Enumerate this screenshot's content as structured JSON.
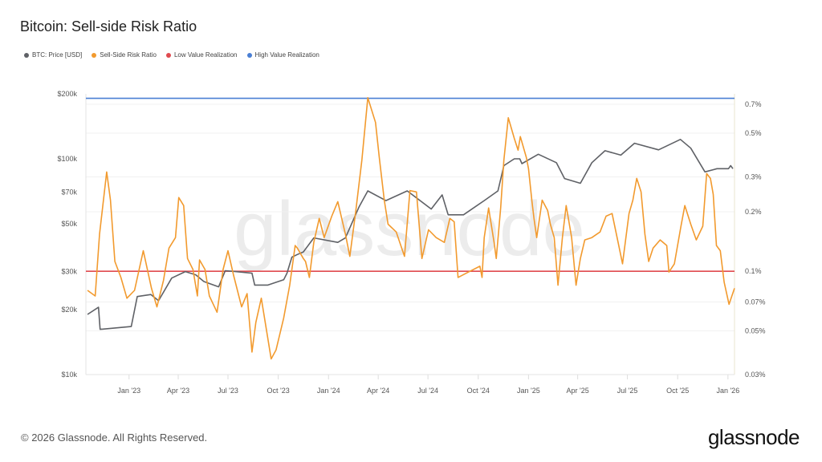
{
  "title": "Bitcoin: Sell-side Risk Ratio",
  "legend": [
    {
      "label": "BTC: Price [USD]",
      "color": "#5f6166"
    },
    {
      "label": "Sell-Side Risk Ratio",
      "color": "#f29a2e"
    },
    {
      "label": "Low Value Realization",
      "color": "#e04a4f"
    },
    {
      "label": "High Value Realization",
      "color": "#4a7fd4"
    }
  ],
  "watermark": "glassnode",
  "footer": {
    "copyright": "© 2026 Glassnode. All Rights Reserved.",
    "logo": "glassnode"
  },
  "chart_data": {
    "type": "line",
    "title": "Bitcoin: Sell-side Risk Ratio",
    "x_range": [
      "2022-10-14",
      "2026-01-13"
    ],
    "x_ticks": [
      {
        "date": "2023-01-01",
        "label": "Jan '23"
      },
      {
        "date": "2023-04-01",
        "label": "Apr '23"
      },
      {
        "date": "2023-07-01",
        "label": "Jul '23"
      },
      {
        "date": "2023-10-01",
        "label": "Oct '23"
      },
      {
        "date": "2024-01-01",
        "label": "Jan '24"
      },
      {
        "date": "2024-04-01",
        "label": "Apr '24"
      },
      {
        "date": "2024-07-01",
        "label": "Jul '24"
      },
      {
        "date": "2024-10-01",
        "label": "Oct '24"
      },
      {
        "date": "2025-01-01",
        "label": "Jan '25"
      },
      {
        "date": "2025-04-01",
        "label": "Apr '25"
      },
      {
        "date": "2025-07-01",
        "label": "Jul '25"
      },
      {
        "date": "2025-10-01",
        "label": "Oct '25"
      },
      {
        "date": "2026-01-01",
        "label": "Jan '26"
      }
    ],
    "y_left": {
      "scale": "log",
      "range": [
        10000,
        200000
      ],
      "ticks": [
        {
          "v": 10000,
          "label": "$10k"
        },
        {
          "v": 20000,
          "label": "$20k"
        },
        {
          "v": 30000,
          "label": "$30k"
        },
        {
          "v": 50000,
          "label": "$50k"
        },
        {
          "v": 70000,
          "label": "$70k"
        },
        {
          "v": 100000,
          "label": "$100k"
        },
        {
          "v": 200000,
          "label": "$200k"
        }
      ]
    },
    "y_right": {
      "scale": "log",
      "range": [
        0.03,
        0.79
      ],
      "unit": "%",
      "ticks": [
        {
          "v": 0.03,
          "label": "0.03%"
        },
        {
          "v": 0.05,
          "label": "0.05%"
        },
        {
          "v": 0.07,
          "label": "0.07%"
        },
        {
          "v": 0.1,
          "label": "0.1%"
        },
        {
          "v": 0.2,
          "label": "0.2%"
        },
        {
          "v": 0.3,
          "label": "0.3%"
        },
        {
          "v": 0.5,
          "label": "0.5%"
        },
        {
          "v": 0.7,
          "label": "0.7%"
        }
      ]
    },
    "grid": true,
    "legend_position": "top-left",
    "series": [
      {
        "name": "BTC: Price [USD]",
        "axis": "left",
        "color": "#5f6166",
        "x": [
          "2022-10-17",
          "2022-11-06",
          "2022-11-09",
          "2023-01-05",
          "2023-01-16",
          "2023-02-10",
          "2023-02-24",
          "2023-03-20",
          "2023-04-14",
          "2023-05-03",
          "2023-05-18",
          "2023-06-14",
          "2023-06-26",
          "2023-07-15",
          "2023-08-14",
          "2023-08-19",
          "2023-09-12",
          "2023-10-11",
          "2023-10-17",
          "2023-10-26",
          "2023-11-05",
          "2023-11-16",
          "2023-12-05",
          "2024-01-18",
          "2024-02-01",
          "2024-02-26",
          "2024-03-13",
          "2024-04-15",
          "2024-05-24",
          "2024-07-07",
          "2024-07-27",
          "2024-08-07",
          "2024-09-04",
          "2024-10-12",
          "2024-11-06",
          "2024-11-17",
          "2024-12-06",
          "2024-12-16",
          "2024-12-20",
          "2025-01-19",
          "2025-02-21",
          "2025-03-08",
          "2025-04-06",
          "2025-04-27",
          "2025-05-21",
          "2025-06-19",
          "2025-07-14",
          "2025-08-27",
          "2025-10-06",
          "2025-10-25",
          "2025-11-20",
          "2025-12-12",
          "2026-01-02",
          "2026-01-06",
          "2026-01-10"
        ],
        "y": [
          19000,
          20500,
          16200,
          16700,
          23000,
          23500,
          22000,
          28000,
          30000,
          29000,
          27000,
          25500,
          30300,
          30000,
          29500,
          26000,
          26000,
          27500,
          29500,
          35000,
          36000,
          37000,
          43000,
          41000,
          43000,
          60000,
          71000,
          64000,
          71000,
          58500,
          68000,
          55000,
          55000,
          64000,
          71000,
          93000,
          100000,
          100000,
          95000,
          105000,
          96000,
          81000,
          77000,
          96000,
          109000,
          104000,
          118000,
          110000,
          123000,
          112000,
          87000,
          90000,
          90000,
          93000,
          90000
        ]
      },
      {
        "name": "Sell-Side Risk Ratio",
        "axis": "right",
        "color": "#f29a2e",
        "x": [
          "2022-10-17",
          "2022-10-31",
          "2022-11-08",
          "2022-11-21",
          "2022-11-28",
          "2022-12-06",
          "2022-12-17",
          "2022-12-28",
          "2023-01-11",
          "2023-01-27",
          "2023-02-11",
          "2023-02-21",
          "2023-03-05",
          "2023-03-15",
          "2023-03-27",
          "2023-04-02",
          "2023-04-11",
          "2023-04-18",
          "2023-04-28",
          "2023-05-06",
          "2023-05-10",
          "2023-05-20",
          "2023-05-28",
          "2023-06-11",
          "2023-06-22",
          "2023-07-01",
          "2023-07-11",
          "2023-07-26",
          "2023-08-05",
          "2023-08-14",
          "2023-08-21",
          "2023-08-31",
          "2023-09-18",
          "2023-09-27",
          "2023-10-11",
          "2023-10-22",
          "2023-11-01",
          "2023-11-05",
          "2023-11-16",
          "2023-11-20",
          "2023-11-27",
          "2023-12-05",
          "2023-12-15",
          "2023-12-24",
          "2024-01-07",
          "2024-01-18",
          "2024-02-01",
          "2024-02-09",
          "2024-02-20",
          "2024-03-02",
          "2024-03-13",
          "2024-03-27",
          "2024-04-03",
          "2024-04-12",
          "2024-04-19",
          "2024-05-04",
          "2024-05-19",
          "2024-05-29",
          "2024-06-10",
          "2024-06-20",
          "2024-07-02",
          "2024-07-16",
          "2024-07-31",
          "2024-08-10",
          "2024-08-18",
          "2024-08-25",
          "2024-09-13",
          "2024-10-04",
          "2024-10-08",
          "2024-10-12",
          "2024-10-20",
          "2024-10-30",
          "2024-11-03",
          "2024-11-11",
          "2024-11-17",
          "2024-11-25",
          "2024-12-06",
          "2024-12-13",
          "2024-12-17",
          "2024-12-28",
          "2025-01-01",
          "2025-01-07",
          "2025-01-11",
          "2025-01-16",
          "2025-01-26",
          "2025-02-05",
          "2025-02-10",
          "2025-02-17",
          "2025-02-24",
          "2025-03-04",
          "2025-03-11",
          "2025-03-21",
          "2025-03-29",
          "2025-04-06",
          "2025-04-14",
          "2025-04-27",
          "2025-05-12",
          "2025-05-23",
          "2025-06-03",
          "2025-06-14",
          "2025-06-22",
          "2025-07-04",
          "2025-07-11",
          "2025-07-18",
          "2025-07-26",
          "2025-08-02",
          "2025-08-09",
          "2025-08-17",
          "2025-08-30",
          "2025-09-11",
          "2025-09-15",
          "2025-09-25",
          "2025-10-07",
          "2025-10-14",
          "2025-10-25",
          "2025-11-04",
          "2025-11-16",
          "2025-11-23",
          "2025-11-30",
          "2025-12-05",
          "2025-12-11",
          "2025-12-18",
          "2025-12-25",
          "2026-01-03",
          "2026-01-13"
        ],
        "y": [
          0.08,
          0.075,
          0.154,
          0.318,
          0.229,
          0.112,
          0.093,
          0.073,
          0.08,
          0.127,
          0.082,
          0.066,
          0.09,
          0.131,
          0.148,
          0.236,
          0.215,
          0.116,
          0.102,
          0.075,
          0.114,
          0.102,
          0.075,
          0.062,
          0.102,
          0.127,
          0.096,
          0.066,
          0.077,
          0.039,
          0.055,
          0.073,
          0.036,
          0.04,
          0.058,
          0.085,
          0.135,
          0.131,
          0.116,
          0.112,
          0.093,
          0.14,
          0.185,
          0.148,
          0.19,
          0.225,
          0.154,
          0.119,
          0.203,
          0.365,
          0.755,
          0.566,
          0.376,
          0.229,
          0.173,
          0.158,
          0.119,
          0.256,
          0.252,
          0.116,
          0.162,
          0.148,
          0.14,
          0.185,
          0.178,
          0.093,
          0.099,
          0.106,
          0.093,
          0.148,
          0.209,
          0.14,
          0.116,
          0.209,
          0.365,
          0.598,
          0.47,
          0.41,
          0.48,
          0.376,
          0.33,
          0.229,
          0.185,
          0.148,
          0.229,
          0.203,
          0.173,
          0.148,
          0.085,
          0.148,
          0.215,
          0.148,
          0.085,
          0.116,
          0.144,
          0.148,
          0.158,
          0.19,
          0.196,
          0.14,
          0.109,
          0.196,
          0.229,
          0.295,
          0.252,
          0.154,
          0.112,
          0.131,
          0.144,
          0.135,
          0.099,
          0.109,
          0.169,
          0.215,
          0.173,
          0.144,
          0.169,
          0.312,
          0.295,
          0.245,
          0.135,
          0.127,
          0.088,
          0.068,
          0.082
        ]
      }
    ],
    "thresholds": [
      {
        "name": "Low Value Realization",
        "axis": "right",
        "value": 0.1,
        "color": "#e04a4f"
      },
      {
        "name": "High Value Realization",
        "axis": "right",
        "value": 0.75,
        "color": "#4a7fd4"
      }
    ]
  }
}
